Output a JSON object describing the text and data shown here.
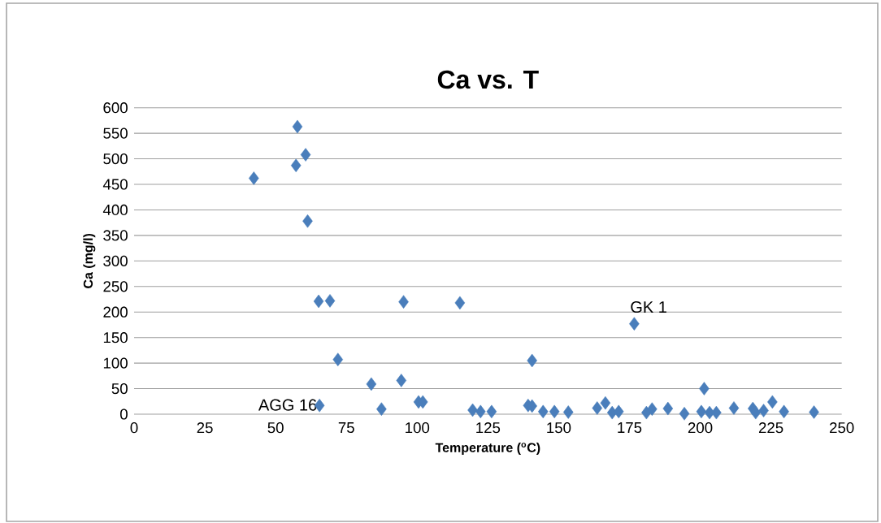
{
  "chart_data": {
    "type": "scatter",
    "title": "Ca vs. T",
    "xlabel": "Temperature ($^{o}$C)",
    "ylabel": "Ca (mg/l)",
    "x": [
      57.7,
      60.6,
      57.2,
      42.3,
      61.3,
      65.2,
      69.2,
      95.2,
      72.0,
      83.8,
      94.4,
      65.5,
      87.4,
      100.5,
      102,
      115.1,
      140.6,
      119.6,
      122.4,
      126.3,
      139.2,
      140.6,
      144.5,
      148.5,
      153.4,
      163.6,
      166.5,
      168.9,
      171.2,
      176.7,
      181,
      183,
      188.6,
      194.4,
      200.4,
      201.4,
      203.3,
      205.7,
      211.9,
      218.6,
      219.6,
      222.4,
      225.5,
      229.6,
      240.2
    ],
    "values": [
      563,
      508,
      487,
      462,
      378,
      221,
      222,
      220,
      107,
      59,
      66,
      17,
      10,
      24,
      24,
      218,
      105,
      8,
      5,
      5,
      17,
      16,
      5,
      5,
      4,
      12,
      22,
      3,
      5,
      177,
      3,
      10,
      11,
      1,
      5,
      50,
      3,
      3,
      12,
      11,
      3,
      7,
      24,
      5,
      4
    ],
    "color": "#4a7ebb",
    "marker": "diamond",
    "xlim": [
      0,
      250
    ],
    "xticks": [
      0,
      25,
      50,
      75,
      100,
      125,
      150,
      175,
      200,
      225,
      250
    ],
    "ylim": [
      0,
      600
    ],
    "yticks": [
      0,
      50,
      100,
      150,
      200,
      250,
      300,
      350,
      400,
      450,
      500,
      550,
      600
    ],
    "grid": "y",
    "annotations": [
      {
        "text": "AGG 16",
        "x": 65.5,
        "y": 17
      },
      {
        "text": "GK 1",
        "x": 176.7,
        "y": 177
      }
    ]
  }
}
